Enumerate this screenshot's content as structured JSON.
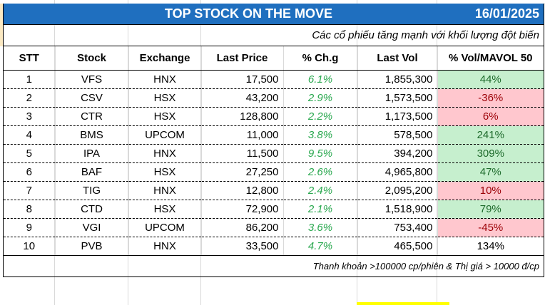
{
  "header": {
    "title": "TOP STOCK ON THE MOVE",
    "date": "16/01/2025",
    "subtitle": "Các cổ phiếu tăng mạnh với khối lượng đột biến"
  },
  "colors": {
    "title_bg": "#1f6fbf",
    "positive_bg": "#c6efce",
    "positive_text": "#1e6b2c",
    "negative_bg": "#ffc7ce",
    "negative_text": "#9c0006",
    "change_text": "#2aa84f"
  },
  "table": {
    "columns": [
      "STT",
      "Stock",
      "Exchange",
      "Last Price",
      "% Ch.g",
      "Last Vol",
      "% Vol/MAVOL 50"
    ],
    "rows": [
      {
        "stt": "1",
        "stock": "VFS",
        "exchange": "HNX",
        "price": "17,500",
        "chg": "6.1%",
        "vol": "1,855,300",
        "ratio": "44%",
        "ratio_style": "pos"
      },
      {
        "stt": "2",
        "stock": "CSV",
        "exchange": "HSX",
        "price": "43,200",
        "chg": "2.9%",
        "vol": "1,573,500",
        "ratio": "-36%",
        "ratio_style": "neg"
      },
      {
        "stt": "3",
        "stock": "CTR",
        "exchange": "HSX",
        "price": "128,800",
        "chg": "2.2%",
        "vol": "1,173,500",
        "ratio": "6%",
        "ratio_style": "neg"
      },
      {
        "stt": "4",
        "stock": "BMS",
        "exchange": "UPCOM",
        "price": "11,000",
        "chg": "3.8%",
        "vol": "578,500",
        "ratio": "241%",
        "ratio_style": "pos"
      },
      {
        "stt": "5",
        "stock": "IPA",
        "exchange": "HNX",
        "price": "11,500",
        "chg": "9.5%",
        "vol": "394,200",
        "ratio": "309%",
        "ratio_style": "pos"
      },
      {
        "stt": "6",
        "stock": "BAF",
        "exchange": "HSX",
        "price": "27,250",
        "chg": "2.6%",
        "vol": "4,965,800",
        "ratio": "47%",
        "ratio_style": "pos"
      },
      {
        "stt": "7",
        "stock": "TIG",
        "exchange": "HNX",
        "price": "12,800",
        "chg": "2.4%",
        "vol": "2,095,200",
        "ratio": "10%",
        "ratio_style": "neg"
      },
      {
        "stt": "8",
        "stock": "CTD",
        "exchange": "HSX",
        "price": "72,900",
        "chg": "2.1%",
        "vol": "1,518,900",
        "ratio": "79%",
        "ratio_style": "pos"
      },
      {
        "stt": "9",
        "stock": "VGI",
        "exchange": "UPCOM",
        "price": "86,200",
        "chg": "3.6%",
        "vol": "753,400",
        "ratio": "-45%",
        "ratio_style": "neg"
      },
      {
        "stt": "10",
        "stock": "PVB",
        "exchange": "HNX",
        "price": "33,500",
        "chg": "4.7%",
        "vol": "465,500",
        "ratio": "134%",
        "ratio_style": "plain"
      }
    ]
  },
  "footer": {
    "note": "Thanh khoản >100000 cp/phiên & Thị giá > 10000 đ/cp"
  }
}
